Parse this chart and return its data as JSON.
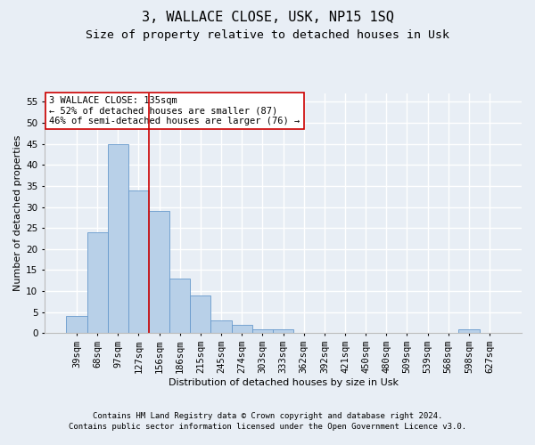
{
  "title": "3, WALLACE CLOSE, USK, NP15 1SQ",
  "subtitle": "Size of property relative to detached houses in Usk",
  "xlabel": "Distribution of detached houses by size in Usk",
  "ylabel": "Number of detached properties",
  "categories": [
    "39sqm",
    "68sqm",
    "97sqm",
    "127sqm",
    "156sqm",
    "186sqm",
    "215sqm",
    "245sqm",
    "274sqm",
    "303sqm",
    "333sqm",
    "362sqm",
    "392sqm",
    "421sqm",
    "450sqm",
    "480sqm",
    "509sqm",
    "539sqm",
    "568sqm",
    "598sqm",
    "627sqm"
  ],
  "values": [
    4,
    24,
    45,
    34,
    29,
    13,
    9,
    3,
    2,
    1,
    1,
    0,
    0,
    0,
    0,
    0,
    0,
    0,
    0,
    1,
    0
  ],
  "bar_color": "#b8d0e8",
  "bar_edge_color": "#6699cc",
  "vline_x_index": 3,
  "vline_color": "#cc0000",
  "ylim": [
    0,
    57
  ],
  "yticks": [
    0,
    5,
    10,
    15,
    20,
    25,
    30,
    35,
    40,
    45,
    50,
    55
  ],
  "annotation_text": "3 WALLACE CLOSE: 135sqm\n← 52% of detached houses are smaller (87)\n46% of semi-detached houses are larger (76) →",
  "annotation_box_color": "#ffffff",
  "annotation_box_edge": "#cc0000",
  "footer1": "Contains HM Land Registry data © Crown copyright and database right 2024.",
  "footer2": "Contains public sector information licensed under the Open Government Licence v3.0.",
  "background_color": "#e8eef5",
  "grid_color": "#ffffff",
  "title_fontsize": 11,
  "subtitle_fontsize": 9.5,
  "axis_label_fontsize": 8,
  "tick_fontsize": 7.5,
  "annotation_fontsize": 7.5,
  "footer_fontsize": 6.5
}
